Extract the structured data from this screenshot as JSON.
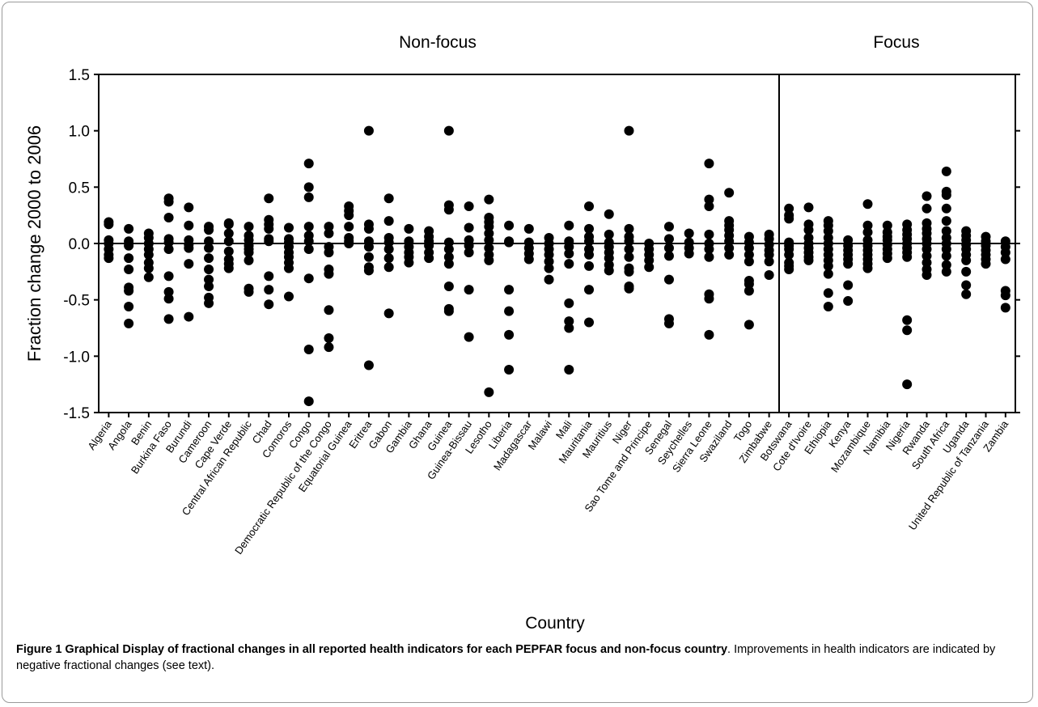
{
  "chart_data": {
    "type": "scatter",
    "panel_labels": {
      "left": "Non-focus",
      "right": "Focus"
    },
    "xlabel": "Country",
    "ylabel": "Fraction change 2000 to 2006",
    "ylim": [
      -1.5,
      1.5
    ],
    "yticks": [
      "-1.5",
      "-1.0",
      "-0.5",
      "0.0",
      "0.5",
      "1.0",
      "1.5"
    ],
    "reference_line": 0.0,
    "marker_color": "#000000",
    "groups": [
      {
        "name": "Non-focus",
        "categories": [
          {
            "name": "Algeria",
            "values": [
              0.19,
              0.17,
              0.03,
              0.0,
              -0.05,
              -0.1,
              -0.13
            ]
          },
          {
            "name": "Angola",
            "values": [
              0.13,
              0.02,
              -0.02,
              -0.13,
              -0.23,
              -0.39,
              -0.42,
              -0.56,
              -0.71
            ]
          },
          {
            "name": "Benin",
            "values": [
              0.09,
              0.05,
              0.0,
              -0.05,
              -0.1,
              -0.17,
              -0.22,
              -0.3
            ]
          },
          {
            "name": "Burkina Faso",
            "values": [
              0.4,
              0.37,
              0.23,
              0.04,
              0.01,
              -0.05,
              -0.29,
              -0.43,
              -0.49,
              -0.67
            ]
          },
          {
            "name": "Burundi",
            "values": [
              0.32,
              0.16,
              0.03,
              -0.01,
              -0.04,
              -0.18,
              -0.65
            ]
          },
          {
            "name": "Cameroon",
            "values": [
              0.15,
              0.12,
              0.02,
              -0.04,
              -0.13,
              -0.23,
              -0.32,
              -0.38,
              -0.48,
              -0.53
            ]
          },
          {
            "name": "Cape Verde",
            "values": [
              0.18,
              0.17,
              0.09,
              0.02,
              -0.07,
              -0.14,
              -0.18,
              -0.22
            ]
          },
          {
            "name": "Central African Republic",
            "values": [
              0.15,
              0.07,
              0.03,
              -0.02,
              -0.05,
              -0.08,
              -0.15,
              -0.4,
              -0.43
            ]
          },
          {
            "name": "Chad",
            "values": [
              0.4,
              0.21,
              0.17,
              0.13,
              0.04,
              0.02,
              -0.29,
              -0.41,
              -0.54
            ]
          },
          {
            "name": "Comoros",
            "values": [
              0.14,
              0.04,
              0.01,
              -0.03,
              -0.08,
              -0.12,
              -0.17,
              -0.22,
              -0.47
            ]
          },
          {
            "name": "Congo",
            "values": [
              0.71,
              0.5,
              0.41,
              0.15,
              0.07,
              0.02,
              -0.05,
              -0.31,
              -0.94,
              -1.4
            ]
          },
          {
            "name": "Democratic Republic of the Congo",
            "values": [
              0.15,
              0.09,
              -0.03,
              -0.08,
              -0.23,
              -0.27,
              -0.59,
              -0.84,
              -0.92
            ]
          },
          {
            "name": "Equatorial Guinea",
            "values": [
              0.33,
              0.29,
              0.25,
              0.15,
              0.05,
              0.02,
              0.0
            ]
          },
          {
            "name": "Eritrea",
            "values": [
              1.0,
              0.17,
              0.13,
              0.02,
              -0.03,
              -0.12,
              -0.21,
              -0.24,
              -1.08
            ]
          },
          {
            "name": "Gabon",
            "values": [
              0.4,
              0.2,
              0.05,
              0.01,
              -0.05,
              -0.13,
              -0.21,
              -0.62
            ]
          },
          {
            "name": "Gambia",
            "values": [
              0.13,
              0.02,
              -0.03,
              -0.08,
              -0.12,
              -0.17
            ]
          },
          {
            "name": "Ghana",
            "values": [
              0.11,
              0.06,
              0.02,
              -0.02,
              -0.08,
              -0.13
            ]
          },
          {
            "name": "Guinea",
            "values": [
              1.0,
              0.34,
              0.3,
              0.01,
              -0.05,
              -0.12,
              -0.18,
              -0.38,
              -0.58,
              -0.6
            ]
          },
          {
            "name": "Guinea-Bissau",
            "values": [
              0.33,
              0.14,
              0.03,
              -0.02,
              -0.08,
              -0.41,
              -0.83
            ]
          },
          {
            "name": "Lesotho",
            "values": [
              0.39,
              0.23,
              0.19,
              0.15,
              0.09,
              0.03,
              -0.04,
              -0.1,
              -0.15,
              -1.32
            ]
          },
          {
            "name": "Liberia",
            "values": [
              0.16,
              0.02,
              0.01,
              -0.41,
              -0.6,
              -0.81,
              -1.12
            ]
          },
          {
            "name": "Madagascar",
            "values": [
              0.13,
              0.01,
              -0.04,
              -0.09,
              -0.14
            ]
          },
          {
            "name": "Malawi",
            "values": [
              0.05,
              0.0,
              -0.05,
              -0.1,
              -0.16,
              -0.22,
              -0.32
            ]
          },
          {
            "name": "Mali",
            "values": [
              0.16,
              0.02,
              -0.03,
              -0.09,
              -0.18,
              -0.53,
              -0.69,
              -0.75,
              -1.12
            ]
          },
          {
            "name": "Mauritania",
            "values": [
              0.33,
              0.13,
              0.06,
              0.02,
              -0.05,
              -0.1,
              -0.2,
              -0.41,
              -0.7
            ]
          },
          {
            "name": "Mauritius",
            "values": [
              0.26,
              0.08,
              0.01,
              -0.03,
              -0.08,
              -0.13,
              -0.19,
              -0.24
            ]
          },
          {
            "name": "Niger",
            "values": [
              1.0,
              0.13,
              0.06,
              0.02,
              -0.05,
              -0.12,
              -0.22,
              -0.25,
              -0.38,
              -0.4
            ]
          },
          {
            "name": "Sao Tome and Principe",
            "values": [
              0.0,
              -0.05,
              -0.1,
              -0.15,
              -0.21
            ]
          },
          {
            "name": "Senegal",
            "values": [
              0.15,
              0.04,
              -0.04,
              -0.11,
              -0.32,
              -0.67,
              -0.71
            ]
          },
          {
            "name": "Seychelles",
            "values": [
              0.09,
              0.01,
              -0.04,
              -0.09
            ]
          },
          {
            "name": "Sierra Leone",
            "values": [
              0.71,
              0.39,
              0.33,
              0.08,
              0.0,
              -0.05,
              -0.12,
              -0.45,
              -0.49,
              -0.81
            ]
          },
          {
            "name": "Swaziland",
            "values": [
              0.45,
              0.2,
              0.16,
              0.12,
              0.07,
              0.02,
              -0.04,
              -0.1
            ]
          },
          {
            "name": "Togo",
            "values": [
              0.06,
              0.01,
              -0.04,
              -0.1,
              -0.16,
              -0.33,
              -0.36,
              -0.42,
              -0.72
            ]
          },
          {
            "name": "Zimbabwe",
            "values": [
              0.08,
              0.04,
              -0.01,
              -0.06,
              -0.1,
              -0.16,
              -0.28
            ]
          }
        ]
      },
      {
        "name": "Focus",
        "categories": [
          {
            "name": "Botswana",
            "values": [
              0.31,
              0.25,
              0.22,
              0.01,
              -0.02,
              -0.05,
              -0.1,
              -0.17,
              -0.2,
              -0.23
            ]
          },
          {
            "name": "Cote d'Ivoire",
            "values": [
              0.32,
              0.17,
              0.12,
              0.05,
              0.0,
              -0.04,
              -0.08,
              -0.12,
              -0.15
            ]
          },
          {
            "name": "Ethiopia",
            "values": [
              0.2,
              0.16,
              0.11,
              0.05,
              0.0,
              -0.05,
              -0.1,
              -0.15,
              -0.2,
              -0.27,
              -0.44,
              -0.56
            ]
          },
          {
            "name": "Kenya",
            "values": [
              0.03,
              -0.02,
              -0.06,
              -0.1,
              -0.14,
              -0.18,
              -0.37,
              -0.51
            ]
          },
          {
            "name": "Mozambique",
            "values": [
              0.35,
              0.16,
              0.1,
              0.03,
              -0.02,
              -0.06,
              -0.1,
              -0.14,
              -0.18,
              -0.22
            ]
          },
          {
            "name": "Namibia",
            "values": [
              0.16,
              0.1,
              0.06,
              0.03,
              -0.01,
              -0.05,
              -0.09,
              -0.13
            ]
          },
          {
            "name": "Nigeria",
            "values": [
              0.17,
              0.12,
              0.08,
              0.04,
              0.0,
              -0.04,
              -0.08,
              -0.12,
              -0.68,
              -0.77,
              -1.25
            ]
          },
          {
            "name": "Rwanda",
            "values": [
              0.42,
              0.31,
              0.18,
              0.13,
              0.09,
              0.04,
              0.0,
              -0.05,
              -0.11,
              -0.17,
              -0.23,
              -0.28
            ]
          },
          {
            "name": "South Africa",
            "values": [
              0.64,
              0.46,
              0.43,
              0.31,
              0.2,
              0.11,
              0.05,
              0.0,
              -0.05,
              -0.11,
              -0.19,
              -0.25
            ]
          },
          {
            "name": "Uganda",
            "values": [
              0.11,
              0.07,
              0.03,
              -0.01,
              -0.05,
              -0.1,
              -0.15,
              -0.25,
              -0.37,
              -0.45
            ]
          },
          {
            "name": "United Republic of Tanzania",
            "values": [
              0.06,
              0.02,
              -0.02,
              -0.06,
              -0.1,
              -0.14,
              -0.18
            ]
          },
          {
            "name": "Zambia",
            "values": [
              0.02,
              -0.03,
              -0.08,
              -0.14,
              -0.42,
              -0.46,
              -0.57
            ]
          }
        ]
      }
    ]
  },
  "caption": {
    "label": "Figure 1 Graphical Display of fractional changes in all reported health indicators for each PEPFAR focus and non-focus country",
    "text": ". Improvements in health indicators are indicated by negative fractional changes (see text)."
  }
}
